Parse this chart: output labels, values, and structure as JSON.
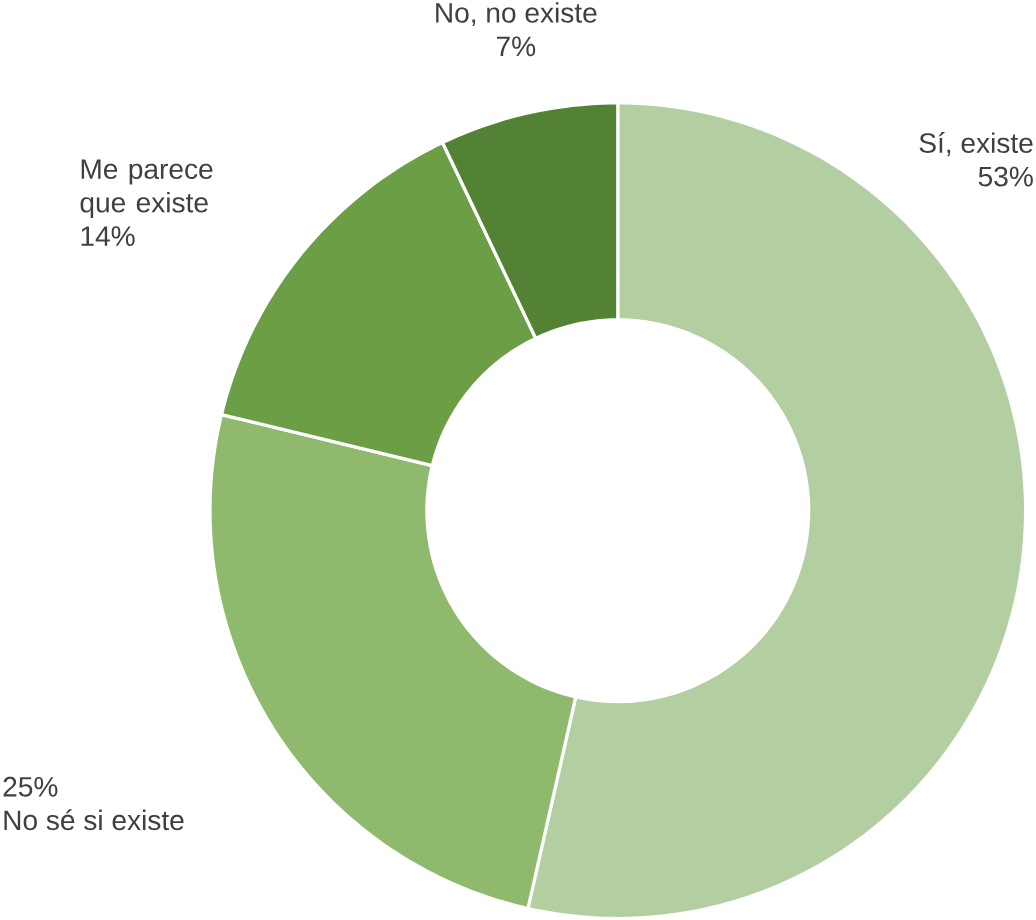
{
  "chart_data": {
    "type": "donut",
    "categories": [
      "Sí, existe",
      "No sé si existe",
      "Me parece que existe",
      "No, no existe"
    ],
    "values": [
      53,
      25,
      14,
      7
    ],
    "value_labels": [
      "53%",
      "25%",
      "14%",
      "7%"
    ],
    "colors": [
      "#b3cea1",
      "#8fba6e",
      "#6b9e45",
      "#548235"
    ]
  }
}
